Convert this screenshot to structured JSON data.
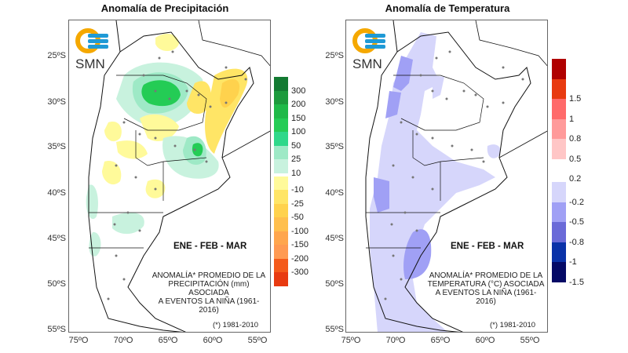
{
  "source_logo": {
    "text": "SMN",
    "ring_color": "#f5a800",
    "wave_color": "#1f9ad6"
  },
  "axes": {
    "lat_labels": [
      "25ºS",
      "30ºS",
      "35ºS",
      "40ºS",
      "45ºS",
      "50ºS",
      "55ºS"
    ],
    "lon_labels": [
      "75ºO",
      "70ºO",
      "65ºO",
      "60ºO",
      "55ºO"
    ]
  },
  "panels": [
    {
      "id": "precip",
      "title": "Anomalía de Precipitación",
      "season": "ENE - FEB - MAR",
      "description": [
        "ANOMALÍA* PROMEDIO DE LA",
        "PRECIPITACIÓN (mm) ASOCIADA",
        "A EVENTOS LA NIÑA (1961-2016)"
      ],
      "reference": "(*) 1981-2010",
      "legend": {
        "positive": [
          {
            "label": "300",
            "color": "#137a32"
          },
          {
            "label": "200",
            "color": "#1c9a3c"
          },
          {
            "label": "150",
            "color": "#1fb948"
          },
          {
            "label": "100",
            "color": "#24cc55"
          },
          {
            "label": "50",
            "color": "#2fd88a"
          },
          {
            "label": "25",
            "color": "#9ee9c6"
          },
          {
            "label": "10",
            "color": "#c8f2de"
          }
        ],
        "negative": [
          {
            "label": "-10",
            "color": "#fffa9a"
          },
          {
            "label": "-25",
            "color": "#ffe566"
          },
          {
            "label": "-50",
            "color": "#ffd24d"
          },
          {
            "label": "-100",
            "color": "#ffbf4d"
          },
          {
            "label": "-150",
            "color": "#ffa64d"
          },
          {
            "label": "-200",
            "color": "#ff9a52"
          },
          {
            "label": "-300",
            "color": "#f45a1a"
          },
          {
            "label": "",
            "color": "#e83a10"
          }
        ]
      }
    },
    {
      "id": "temp",
      "title": "Anomalía de Temperatura",
      "season": "ENE - FEB - MAR",
      "description": [
        "ANOMALÍA* PROMEDIO DE LA",
        "TEMPERATURA (°C) ASOCIADA",
        "A EVENTOS LA NIÑA (1961-2016)"
      ],
      "reference": "(*) 1981-2010",
      "legend": {
        "positive": [
          {
            "label": "",
            "color": "#b00000"
          },
          {
            "label": "1.5",
            "color": "#e83a10"
          },
          {
            "label": "1",
            "color": "#ff6a6a"
          },
          {
            "label": "0.8",
            "color": "#ff9a9a"
          },
          {
            "label": "0.5",
            "color": "#ffc6c6"
          },
          {
            "label": "0.2",
            "color": "#ffffff"
          }
        ],
        "negative": [
          {
            "label": "-0.2",
            "color": "#d6d6fb"
          },
          {
            "label": "-0.5",
            "color": "#a0a0f5"
          },
          {
            "label": "-0.8",
            "color": "#6a6ad8"
          },
          {
            "label": "-1",
            "color": "#0a32a8"
          },
          {
            "label": "-1.5",
            "color": "#050a66"
          }
        ]
      }
    }
  ]
}
